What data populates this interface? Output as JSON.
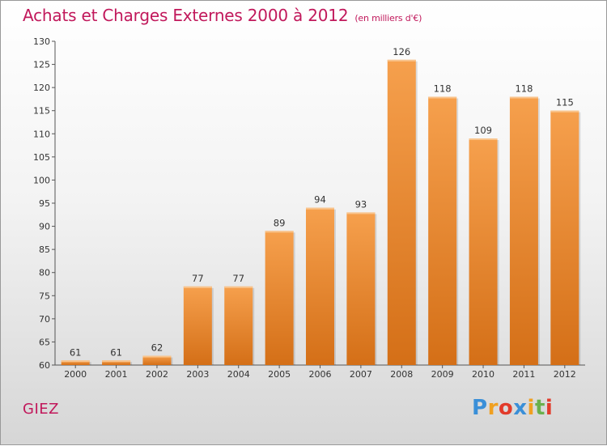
{
  "title": "Achats et Charges Externes 2000 à 2012",
  "subtitle": "(en milliers d'€)",
  "commune": "GIEZ",
  "logo": {
    "letters": [
      "P",
      "r",
      "o",
      "x",
      "i",
      "t",
      "i"
    ],
    "colors": [
      "#3a8fd8",
      "#f0a020",
      "#e23b2b",
      "#3a8fd8",
      "#f0a020",
      "#6ab04c",
      "#e23b2b"
    ]
  },
  "colors": {
    "bar_top": "#f6a04d",
    "bar_bottom": "#d46f17",
    "title": "#c1185b"
  },
  "chart_data": {
    "type": "bar",
    "title": "Achats et Charges Externes 2000 à 2012",
    "categories": [
      "2000",
      "2001",
      "2002",
      "2003",
      "2004",
      "2005",
      "2006",
      "2007",
      "2008",
      "2009",
      "2010",
      "2011",
      "2012"
    ],
    "values": [
      61,
      61,
      62,
      77,
      77,
      89,
      94,
      93,
      126,
      118,
      109,
      118,
      115
    ],
    "ylim": [
      60,
      130
    ],
    "yticks": [
      60,
      65,
      70,
      75,
      80,
      85,
      90,
      95,
      100,
      105,
      110,
      115,
      120,
      125,
      130
    ],
    "xlabel": "",
    "ylabel": "",
    "grid": false
  }
}
